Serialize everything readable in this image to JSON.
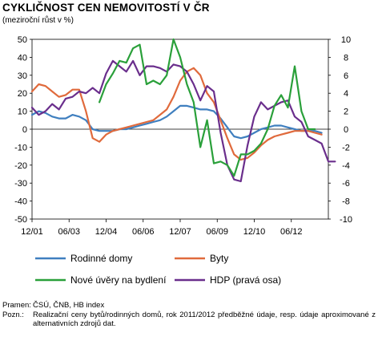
{
  "chart_data": {
    "type": "line",
    "title": "CYKLIČNOST CEN NEMOVITOSTÍ V ČR",
    "subtitle": "(meziroční růst v %)",
    "x_tick_labels": [
      "12/01",
      "06/03",
      "12/04",
      "06/06",
      "12/07",
      "06/09",
      "12/10",
      "06/12"
    ],
    "ylim_left": [
      -50,
      50
    ],
    "ylim_right": [
      -10,
      10
    ],
    "left_ticks": [
      "50",
      "40",
      "30",
      "20",
      "10",
      "0",
      "-10",
      "-20",
      "-30",
      "-40",
      "-50"
    ],
    "right_ticks": [
      "10",
      "8",
      "6",
      "4",
      "2",
      "0",
      "-2",
      "-4",
      "-6",
      "-8",
      "-10"
    ],
    "grid": false,
    "legend_position": "bottom",
    "series": [
      {
        "name": "Rodinné domy",
        "axis": "left",
        "color": "#3f7fbf",
        "points": [
          [
            "2001-12",
            8
          ],
          [
            "2002-03",
            10
          ],
          [
            "2002-06",
            9
          ],
          [
            "2002-09",
            7
          ],
          [
            "2002-12",
            6
          ],
          [
            "2003-03",
            6
          ],
          [
            "2003-06",
            8
          ],
          [
            "2003-09",
            7
          ],
          [
            "2003-12",
            5
          ],
          [
            "2004-03",
            0
          ],
          [
            "2004-06",
            -1
          ],
          [
            "2004-09",
            -1
          ],
          [
            "2004-12",
            -1
          ],
          [
            "2005-03",
            0
          ],
          [
            "2005-06",
            0
          ],
          [
            "2005-09",
            1
          ],
          [
            "2005-12",
            2
          ],
          [
            "2006-03",
            3
          ],
          [
            "2006-06",
            4
          ],
          [
            "2006-09",
            5
          ],
          [
            "2006-12",
            7
          ],
          [
            "2007-03",
            10
          ],
          [
            "2007-06",
            13
          ],
          [
            "2007-09",
            13
          ],
          [
            "2007-12",
            12
          ],
          [
            "2008-03",
            11
          ],
          [
            "2008-06",
            11
          ],
          [
            "2008-09",
            10
          ],
          [
            "2008-12",
            6
          ],
          [
            "2009-03",
            1
          ],
          [
            "2009-06",
            -4
          ],
          [
            "2009-09",
            -5
          ],
          [
            "2009-12",
            -4
          ],
          [
            "2010-03",
            -2
          ],
          [
            "2010-06",
            0
          ],
          [
            "2010-09",
            1
          ],
          [
            "2010-12",
            2
          ],
          [
            "2011-03",
            2
          ],
          [
            "2011-06",
            1
          ],
          [
            "2011-09",
            0
          ],
          [
            "2011-12",
            -1
          ],
          [
            "2012-03",
            -1
          ],
          [
            "2012-06",
            -1
          ],
          [
            "2012-09",
            -2
          ]
        ]
      },
      {
        "name": "Byty",
        "axis": "left",
        "color": "#e06a3c",
        "points": [
          [
            "2001-12",
            21
          ],
          [
            "2002-03",
            25
          ],
          [
            "2002-06",
            24
          ],
          [
            "2002-09",
            21
          ],
          [
            "2002-12",
            18
          ],
          [
            "2003-03",
            19
          ],
          [
            "2003-06",
            22
          ],
          [
            "2003-09",
            22
          ],
          [
            "2003-12",
            10
          ],
          [
            "2004-03",
            -5
          ],
          [
            "2004-06",
            -7
          ],
          [
            "2004-09",
            -3
          ],
          [
            "2004-12",
            -1
          ],
          [
            "2005-03",
            0
          ],
          [
            "2005-06",
            1
          ],
          [
            "2005-09",
            2
          ],
          [
            "2005-12",
            3
          ],
          [
            "2006-03",
            4
          ],
          [
            "2006-06",
            5
          ],
          [
            "2006-09",
            8
          ],
          [
            "2006-12",
            11
          ],
          [
            "2007-03",
            18
          ],
          [
            "2007-06",
            27
          ],
          [
            "2007-09",
            32
          ],
          [
            "2007-12",
            34
          ],
          [
            "2008-03",
            30
          ],
          [
            "2008-06",
            20
          ],
          [
            "2008-09",
            15
          ],
          [
            "2008-12",
            5
          ],
          [
            "2009-03",
            -5
          ],
          [
            "2009-06",
            -14
          ],
          [
            "2009-09",
            -17
          ],
          [
            "2009-12",
            -16
          ],
          [
            "2010-03",
            -13
          ],
          [
            "2010-06",
            -9
          ],
          [
            "2010-09",
            -6
          ],
          [
            "2010-12",
            -4
          ],
          [
            "2011-03",
            -3
          ],
          [
            "2011-06",
            -2
          ],
          [
            "2011-09",
            -1
          ],
          [
            "2011-12",
            -1
          ],
          [
            "2012-03",
            -1
          ],
          [
            "2012-06",
            -2
          ],
          [
            "2012-09",
            -3
          ]
        ]
      },
      {
        "name": "Nové úvěry na bydlení",
        "axis": "left",
        "color": "#2aa03a",
        "points": [
          [
            "2004-06",
            15
          ],
          [
            "2004-09",
            25
          ],
          [
            "2004-12",
            31
          ],
          [
            "2005-03",
            38
          ],
          [
            "2005-06",
            37
          ],
          [
            "2005-09",
            45
          ],
          [
            "2005-12",
            47
          ],
          [
            "2006-03",
            25
          ],
          [
            "2006-06",
            27
          ],
          [
            "2006-09",
            25
          ],
          [
            "2006-12",
            30
          ],
          [
            "2007-03",
            50
          ],
          [
            "2007-06",
            40
          ],
          [
            "2007-09",
            25
          ],
          [
            "2007-12",
            15
          ],
          [
            "2008-03",
            -10
          ],
          [
            "2008-06",
            5
          ],
          [
            "2008-09",
            -19
          ],
          [
            "2008-12",
            -18
          ],
          [
            "2009-03",
            -20
          ],
          [
            "2009-06",
            -26
          ],
          [
            "2009-09",
            -14
          ],
          [
            "2009-12",
            -14
          ],
          [
            "2010-03",
            -12
          ],
          [
            "2010-06",
            -8
          ],
          [
            "2010-09",
            0
          ],
          [
            "2010-12",
            13
          ],
          [
            "2011-03",
            19
          ],
          [
            "2011-06",
            12
          ],
          [
            "2011-09",
            35
          ],
          [
            "2011-12",
            10
          ],
          [
            "2012-03",
            0
          ],
          [
            "2012-06",
            0
          ]
        ]
      },
      {
        "name": "HDP (pravá osa)",
        "axis": "right",
        "color": "#6a2e8c",
        "points": [
          [
            "2001-12",
            2.4
          ],
          [
            "2002-03",
            1.6
          ],
          [
            "2002-06",
            2.0
          ],
          [
            "2002-09",
            2.8
          ],
          [
            "2002-12",
            2.2
          ],
          [
            "2003-03",
            3.4
          ],
          [
            "2003-06",
            3.6
          ],
          [
            "2003-09",
            4.2
          ],
          [
            "2003-12",
            4.0
          ],
          [
            "2004-03",
            4.6
          ],
          [
            "2004-06",
            4.0
          ],
          [
            "2004-09",
            6.2
          ],
          [
            "2004-12",
            7.6
          ],
          [
            "2005-03",
            7.0
          ],
          [
            "2005-06",
            6.4
          ],
          [
            "2005-09",
            7.6
          ],
          [
            "2005-12",
            6.0
          ],
          [
            "2006-03",
            7.0
          ],
          [
            "2006-06",
            7.0
          ],
          [
            "2006-09",
            6.8
          ],
          [
            "2006-12",
            6.4
          ],
          [
            "2007-03",
            7.2
          ],
          [
            "2007-06",
            7.0
          ],
          [
            "2007-09",
            6.4
          ],
          [
            "2007-12",
            5.0
          ],
          [
            "2008-03",
            3.2
          ],
          [
            "2008-06",
            4.8
          ],
          [
            "2008-09",
            4.2
          ],
          [
            "2008-12",
            -0.4
          ],
          [
            "2009-03",
            -4.0
          ],
          [
            "2009-06",
            -5.6
          ],
          [
            "2009-09",
            -5.8
          ],
          [
            "2009-12",
            -1.8
          ],
          [
            "2010-03",
            1.4
          ],
          [
            "2010-06",
            3.0
          ],
          [
            "2010-09",
            2.2
          ],
          [
            "2010-12",
            2.6
          ],
          [
            "2011-03",
            3.0
          ],
          [
            "2011-06",
            3.2
          ],
          [
            "2011-09",
            1.4
          ],
          [
            "2011-12",
            0.8
          ],
          [
            "2012-03",
            -0.8
          ],
          [
            "2012-06",
            -1.2
          ],
          [
            "2012-09",
            -1.6
          ],
          [
            "2012-12",
            -3.6
          ],
          [
            "2013-03",
            -3.6
          ]
        ]
      }
    ]
  },
  "notes": {
    "source_label": "Pramen:",
    "source_text": "ČSÚ, ČNB, HB index",
    "note_label": "Pozn.:",
    "note_text": "Realizační ceny bytů/rodinných domů, rok 2011/2012 předběžné údaje, resp. údaje aproximované z alternativních zdrojů dat."
  }
}
